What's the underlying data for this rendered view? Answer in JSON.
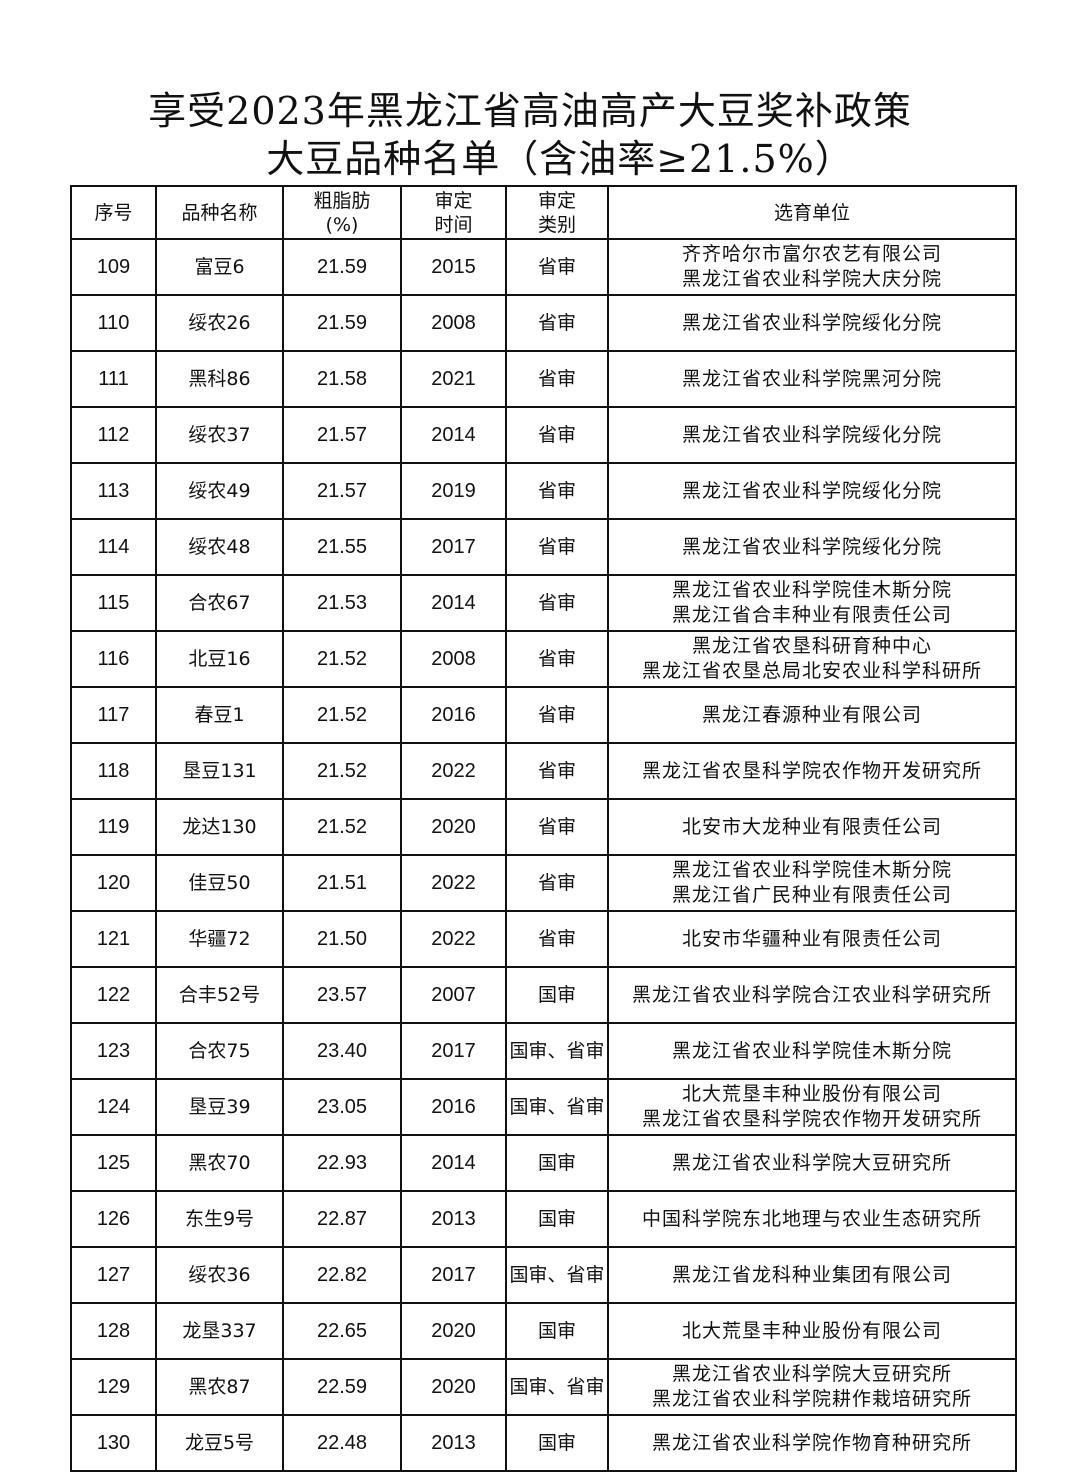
{
  "title": {
    "line1": "享受2023年黑龙江省高油高产大豆奖补政策",
    "line2": "大豆品种名单（含油率≥21.5%）"
  },
  "headers": {
    "no": "序号",
    "variety": "品种名称",
    "fat_l1": "粗脂肪",
    "fat_l2": "(%)",
    "time_l1": "审定",
    "time_l2": "时间",
    "cat_l1": "审定",
    "cat_l2": "类别",
    "unit": "选育单位"
  },
  "rows": [
    {
      "no": "109",
      "variety": "富豆6",
      "fat": "21.59",
      "year": "2015",
      "cat": "省审",
      "unit": [
        "齐齐哈尔市富尔农艺有限公司",
        "黑龙江省农业科学院大庆分院"
      ]
    },
    {
      "no": "110",
      "variety": "绥农26",
      "fat": "21.59",
      "year": "2008",
      "cat": "省审",
      "unit": [
        "黑龙江省农业科学院绥化分院"
      ]
    },
    {
      "no": "111",
      "variety": "黑科86",
      "fat": "21.58",
      "year": "2021",
      "cat": "省审",
      "unit": [
        "黑龙江省农业科学院黑河分院"
      ]
    },
    {
      "no": "112",
      "variety": "绥农37",
      "fat": "21.57",
      "year": "2014",
      "cat": "省审",
      "unit": [
        "黑龙江省农业科学院绥化分院"
      ]
    },
    {
      "no": "113",
      "variety": "绥农49",
      "fat": "21.57",
      "year": "2019",
      "cat": "省审",
      "unit": [
        "黑龙江省农业科学院绥化分院"
      ]
    },
    {
      "no": "114",
      "variety": "绥农48",
      "fat": "21.55",
      "year": "2017",
      "cat": "省审",
      "unit": [
        "黑龙江省农业科学院绥化分院"
      ]
    },
    {
      "no": "115",
      "variety": "合农67",
      "fat": "21.53",
      "year": "2014",
      "cat": "省审",
      "unit": [
        "黑龙江省农业科学院佳木斯分院",
        "黑龙江省合丰种业有限责任公司"
      ]
    },
    {
      "no": "116",
      "variety": "北豆16",
      "fat": "21.52",
      "year": "2008",
      "cat": "省审",
      "unit": [
        "黑龙江省农垦科研育种中心",
        "黑龙江省农垦总局北安农业科学科研所"
      ]
    },
    {
      "no": "117",
      "variety": "春豆1",
      "fat": "21.52",
      "year": "2016",
      "cat": "省审",
      "unit": [
        "黑龙江春源种业有限公司"
      ]
    },
    {
      "no": "118",
      "variety": "垦豆131",
      "fat": "21.52",
      "year": "2022",
      "cat": "省审",
      "unit": [
        "黑龙江省农垦科学院农作物开发研究所"
      ]
    },
    {
      "no": "119",
      "variety": "龙达130",
      "fat": "21.52",
      "year": "2020",
      "cat": "省审",
      "unit": [
        "北安市大龙种业有限责任公司"
      ]
    },
    {
      "no": "120",
      "variety": "佳豆50",
      "fat": "21.51",
      "year": "2022",
      "cat": "省审",
      "unit": [
        "黑龙江省农业科学院佳木斯分院",
        "黑龙江省广民种业有限责任公司"
      ]
    },
    {
      "no": "121",
      "variety": "华疆72",
      "fat": "21.50",
      "year": "2022",
      "cat": "省审",
      "unit": [
        "北安市华疆种业有限责任公司"
      ]
    },
    {
      "no": "122",
      "variety": "合丰52号",
      "fat": "23.57",
      "year": "2007",
      "cat": "国审",
      "unit": [
        "黑龙江省农业科学院合江农业科学研究所"
      ]
    },
    {
      "no": "123",
      "variety": "合农75",
      "fat": "23.40",
      "year": "2017",
      "cat": "国审、省审",
      "unit": [
        "黑龙江省农业科学院佳木斯分院"
      ]
    },
    {
      "no": "124",
      "variety": "垦豆39",
      "fat": "23.05",
      "year": "2016",
      "cat": "国审、省审",
      "unit": [
        "北大荒垦丰种业股份有限公司",
        "黑龙江省农垦科学院农作物开发研究所"
      ]
    },
    {
      "no": "125",
      "variety": "黑农70",
      "fat": "22.93",
      "year": "2014",
      "cat": "国审",
      "unit": [
        "黑龙江省农业科学院大豆研究所"
      ]
    },
    {
      "no": "126",
      "variety": "东生9号",
      "fat": "22.87",
      "year": "2013",
      "cat": "国审",
      "unit": [
        "中国科学院东北地理与农业生态研究所"
      ]
    },
    {
      "no": "127",
      "variety": "绥农36",
      "fat": "22.82",
      "year": "2017",
      "cat": "国审、省审",
      "unit": [
        "黑龙江省龙科种业集团有限公司"
      ]
    },
    {
      "no": "128",
      "variety": "龙垦337",
      "fat": "22.65",
      "year": "2020",
      "cat": "国审",
      "unit": [
        "北大荒垦丰种业股份有限公司"
      ]
    },
    {
      "no": "129",
      "variety": "黑农87",
      "fat": "22.59",
      "year": "2020",
      "cat": "国审、省审",
      "unit": [
        "黑龙江省农业科学院大豆研究所",
        "黑龙江省农业科学院耕作栽培研究所"
      ]
    },
    {
      "no": "130",
      "variety": "龙豆5号",
      "fat": "22.48",
      "year": "2013",
      "cat": "国审",
      "unit": [
        "黑龙江省农业科学院作物育种研究所"
      ]
    }
  ]
}
